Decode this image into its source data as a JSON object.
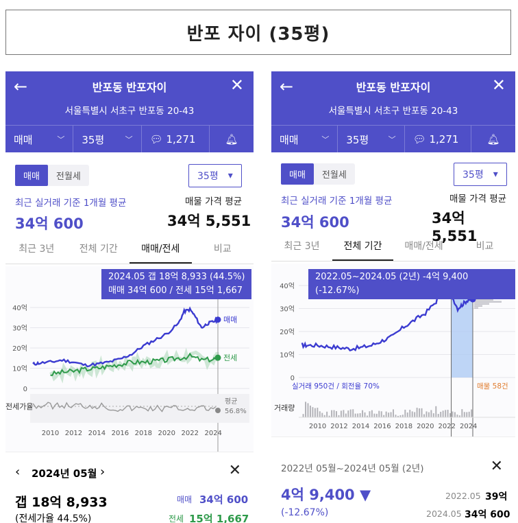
{
  "page_title": "반포 자이 (35평)",
  "left": {
    "header": {
      "back_icon": "arrow-left-icon",
      "name": "반포동 반포자이",
      "close_icon": "close-icon",
      "address": "서울특별시 서초구 반포동 20-43",
      "deal_type": "매매",
      "size": "35평",
      "comment_count": "1,271"
    },
    "toggle": [
      "매매",
      "전월세"
    ],
    "size_select": "35평",
    "recent_label": "최근 실거래 기준 1개월 평균",
    "recent_value": "34억 600",
    "listing_label": "매물 가격 평균",
    "listing_value": "34억 5,551",
    "tabs": [
      "최근 3년",
      "전체 기간",
      "매매/전세",
      "비교"
    ],
    "active_tab": "매매/전세",
    "tooltip_line1": "2024.05  갭 18억 8,933 (44.5%)",
    "tooltip_line2": "매매 34억 600 / 전세 15억 1,667",
    "legend_sale": "매매",
    "legend_jeonse": "전세",
    "ratio_label": "전세가율",
    "ratio_avg_label": "평균",
    "ratio_avg_value": "56.8%",
    "detail": {
      "month": "2024년 05월",
      "gap": "갭 18억 8,933",
      "ratio": "(전세가율 44.5%)",
      "sale_label": "매매",
      "sale_value": "34억 600",
      "jeonse_label": "전세",
      "jeonse_value": "15억 1,667"
    }
  },
  "right": {
    "header": {
      "back_icon": "arrow-left-icon",
      "name": "반포동 반포자이",
      "close_icon": "close-icon",
      "address": "서울특별시 서초구 반포동 20-43",
      "deal_type": "매매",
      "size": "35평",
      "comment_count": "1,271"
    },
    "toggle": [
      "매매",
      "전월세"
    ],
    "size_select": "35평",
    "recent_label": "최근 실거래 기준 1개월 평균",
    "recent_value": "34억 600",
    "listing_label": "매물 가격 평균",
    "listing_value": "34억 5,551",
    "tabs": [
      "최근 3년",
      "전체 기간",
      "매매/전세",
      "비교"
    ],
    "active_tab": "전체 기간",
    "tooltip": "2022.05~2024.05 (2년)  -4억 9,400 (-12.67%)",
    "deals_text": "실거래 950건 / 회전율 70%",
    "listings_text": "매물 58건",
    "volume_label": "거래량",
    "detail": {
      "range": "2022년 05월~2024년 05월 (2년)",
      "change": "4억 9,400 ▼",
      "change_pct": "(-12.67%)",
      "from_date": "2022.05",
      "from_value": "39억",
      "to_date": "2024.05",
      "to_value": "34억 600"
    }
  },
  "chart_data": [
    {
      "type": "line",
      "title": "",
      "x_ticks": [
        "2010",
        "2012",
        "2014",
        "2016",
        "2018",
        "2020",
        "2022",
        "2024"
      ],
      "y_ticks": [
        "0",
        "10억",
        "20억",
        "30억",
        "40억"
      ],
      "ylim": [
        0,
        40
      ],
      "series": [
        {
          "name": "매매",
          "color": "#3b3bd0",
          "x": [
            2008.5,
            2009,
            2010,
            2011,
            2012,
            2013,
            2014,
            2015,
            2016,
            2017,
            2018,
            2019,
            2020,
            2021,
            2021.5,
            2022,
            2022.4,
            2023,
            2023.5,
            2024,
            2024.4
          ],
          "values": [
            12,
            12.5,
            13,
            14,
            13,
            11.5,
            12,
            13,
            14.5,
            17,
            21,
            24,
            27,
            32,
            38,
            39,
            36,
            30,
            32,
            33,
            34
          ]
        },
        {
          "name": "전세",
          "color": "#2e9a4a",
          "x": [
            2010,
            2011,
            2012,
            2013,
            2014,
            2015,
            2016,
            2017,
            2018,
            2019,
            2020,
            2021,
            2022,
            2023,
            2024,
            2024.4
          ],
          "values": [
            7,
            8,
            8.5,
            9.5,
            10,
            11,
            12,
            13,
            13,
            13.5,
            14,
            15,
            16,
            14,
            14.5,
            15.2
          ]
        }
      ],
      "ratio_series": {
        "name": "전세가율",
        "average": "56.8%"
      }
    },
    {
      "type": "line",
      "title": "",
      "x_ticks": [
        "2010",
        "2012",
        "2014",
        "2016",
        "2018",
        "2020",
        "2022",
        "2024"
      ],
      "y_ticks": [
        "0",
        "10억",
        "20억",
        "30억",
        "40억"
      ],
      "ylim": [
        0,
        40
      ],
      "series": [
        {
          "name": "매매",
          "color": "#3b3bd0",
          "x": [
            2008.5,
            2009,
            2010,
            2011,
            2012,
            2013,
            2014,
            2015,
            2016,
            2017,
            2018,
            2019,
            2020,
            2021,
            2021.5,
            2022,
            2022.4,
            2023,
            2023.5,
            2024,
            2024.4
          ],
          "values": [
            14,
            14,
            14,
            13.5,
            13,
            12.5,
            13,
            14,
            16,
            18,
            22,
            25,
            28,
            33,
            38,
            40,
            36,
            30,
            32,
            34,
            34
          ]
        }
      ],
      "highlight": {
        "from": "2022.05",
        "to": "2024.05"
      }
    }
  ]
}
